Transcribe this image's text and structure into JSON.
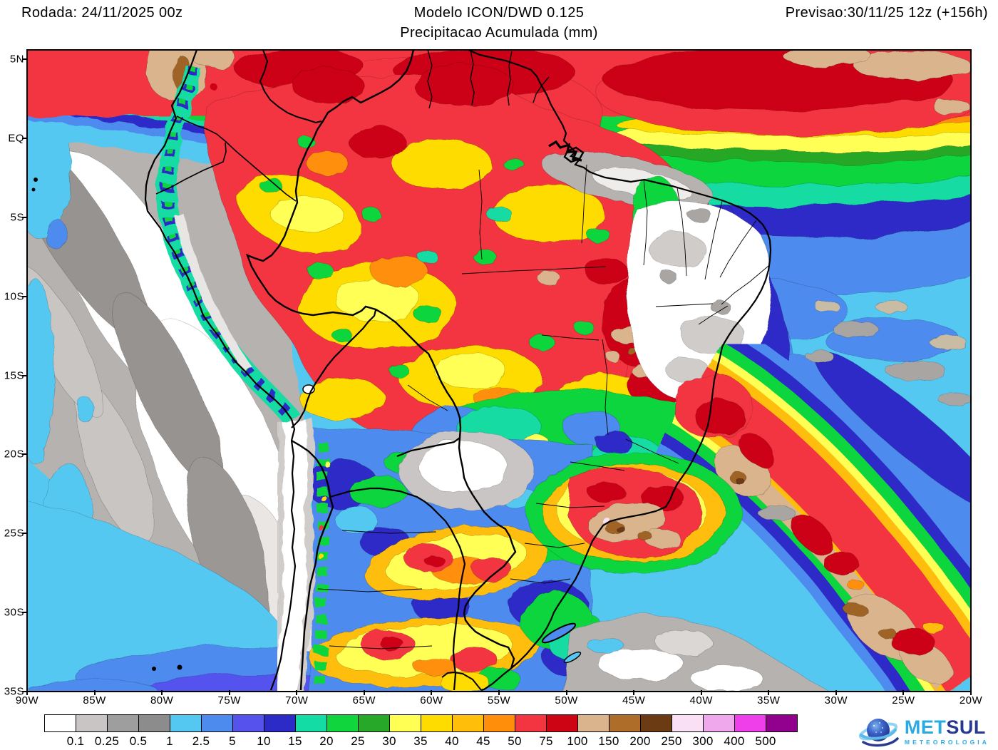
{
  "header": {
    "left": "Rodada: 24/11/2025 00z",
    "center_line1": "Modelo ICON/DWD 0.125",
    "center_line2": "Precipitacao Acumulada (mm)",
    "right": "Previsao:30/11/25 12z (+156h)"
  },
  "map": {
    "y_ticks": [
      "5N",
      "EQ",
      "5S",
      "10S",
      "15S",
      "20S",
      "25S",
      "30S",
      "35S"
    ],
    "x_ticks": [
      "90W",
      "85W",
      "80W",
      "75W",
      "70W",
      "65W",
      "60W",
      "55W",
      "50W",
      "45W",
      "40W",
      "35W",
      "30W",
      "25W",
      "20W"
    ]
  },
  "legend": {
    "labels": [
      "0.1",
      "0.25",
      "0.5",
      "1",
      "2.5",
      "5",
      "10",
      "15",
      "20",
      "25",
      "30",
      "35",
      "40",
      "45",
      "50",
      "75",
      "100",
      "150",
      "200",
      "250",
      "300",
      "400",
      "500"
    ],
    "colors": [
      "#FFFFFF",
      "#C9C5C5",
      "#9E9E9E",
      "#8C8C8C",
      "#55C8F2",
      "#4E8BEE",
      "#5552EE",
      "#2D2BC8",
      "#13DCA4",
      "#10D53C",
      "#28A828",
      "#FFFF54",
      "#FFDC00",
      "#FFBE0A",
      "#FF8F0A",
      "#F23540",
      "#CC0414",
      "#D9B48C",
      "#AE6E2A",
      "#6B3B13",
      "#FAE0F5",
      "#EFA8EC",
      "#EE3FEA",
      "#92008E"
    ]
  },
  "logo": {
    "met": "MET",
    "sul": "SUL",
    "sub": "METEOROLOGIA"
  }
}
